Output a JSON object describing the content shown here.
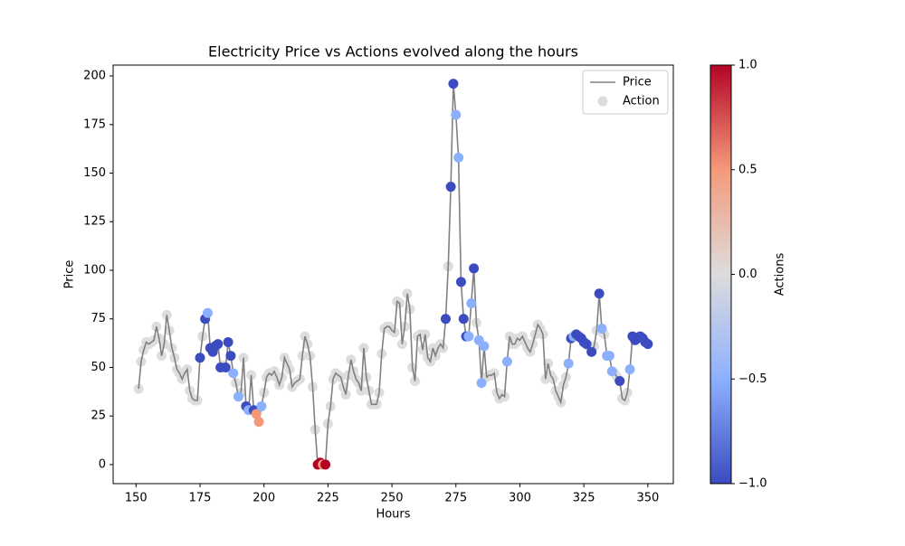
{
  "chart_data": {
    "type": "line",
    "title": "Electricity Price vs Actions evolved along the hours",
    "xlabel": "Hours",
    "ylabel": "Price",
    "x": [
      151,
      152,
      153,
      154,
      155,
      156,
      157,
      158,
      159,
      160,
      161,
      162,
      163,
      164,
      165,
      166,
      167,
      168,
      169,
      170,
      171,
      172,
      173,
      174,
      175,
      176,
      177,
      178,
      179,
      180,
      181,
      182,
      183,
      184,
      185,
      186,
      187,
      188,
      189,
      190,
      191,
      192,
      193,
      194,
      195,
      196,
      197,
      198,
      199,
      200,
      201,
      202,
      203,
      204,
      205,
      206,
      207,
      208,
      209,
      210,
      211,
      212,
      213,
      214,
      215,
      216,
      217,
      218,
      219,
      220,
      221,
      222,
      223,
      224,
      225,
      226,
      227,
      228,
      229,
      230,
      231,
      232,
      233,
      234,
      235,
      236,
      237,
      238,
      239,
      240,
      241,
      242,
      243,
      244,
      245,
      246,
      247,
      248,
      249,
      250,
      251,
      252,
      253,
      254,
      255,
      256,
      257,
      258,
      259,
      260,
      261,
      262,
      263,
      264,
      265,
      266,
      267,
      268,
      269,
      270,
      271,
      272,
      273,
      274,
      275,
      276,
      277,
      278,
      279,
      280,
      281,
      282,
      283,
      284,
      285,
      286,
      287,
      288,
      289,
      290,
      291,
      292,
      293,
      294,
      295,
      296,
      297,
      298,
      299,
      300,
      301,
      302,
      303,
      304,
      305,
      306,
      307,
      308,
      309,
      310,
      311,
      312,
      313,
      314,
      315,
      316,
      317,
      318,
      319,
      320,
      321,
      322,
      323,
      324,
      325,
      326,
      327,
      328,
      329,
      330,
      331,
      332,
      333,
      334,
      335,
      336,
      337,
      338,
      339,
      340,
      341,
      342,
      343,
      344,
      345,
      346,
      347,
      348,
      349,
      350
    ],
    "series": [
      {
        "name": "Price",
        "color": "#808080",
        "values": [
          39,
          53,
          59,
          63,
          62,
          63,
          64,
          71,
          65,
          56,
          62,
          77,
          69,
          60,
          55,
          49,
          47,
          44,
          47,
          49,
          38,
          34,
          33,
          33,
          55,
          66,
          75,
          78,
          60,
          58,
          61,
          62,
          50,
          51,
          50,
          63,
          56,
          47,
          42,
          35,
          37,
          55,
          30,
          28,
          46,
          28,
          26,
          22,
          30,
          37,
          45,
          47,
          46,
          48,
          45,
          41,
          45,
          55,
          52,
          49,
          40,
          42,
          43,
          44,
          56,
          66,
          62,
          56,
          40,
          18,
          0,
          1,
          0,
          0,
          21,
          30,
          44,
          47,
          46,
          45,
          40,
          36,
          46,
          54,
          48,
          44,
          42,
          38,
          60,
          45,
          38,
          31,
          31,
          31,
          37,
          57,
          70,
          71,
          71,
          69,
          68,
          84,
          83,
          62,
          71,
          88,
          80,
          50,
          43,
          66,
          67,
          59,
          67,
          55,
          53,
          60,
          56,
          60,
          62,
          60,
          75,
          102,
          143,
          196,
          180,
          158,
          94,
          75,
          66,
          66,
          83,
          101,
          73,
          64,
          42,
          61,
          45,
          46,
          46,
          47,
          37,
          34,
          36,
          35,
          53,
          66,
          62,
          62,
          65,
          64,
          66,
          63,
          60,
          58,
          62,
          67,
          72,
          70,
          67,
          44,
          52,
          46,
          44,
          38,
          35,
          32,
          41,
          45,
          52,
          65,
          66,
          67,
          66,
          65,
          63,
          62,
          61,
          58,
          61,
          69,
          88,
          70,
          67,
          56,
          56,
          48,
          47,
          45,
          43,
          34,
          33,
          37,
          49,
          66,
          64,
          65,
          66,
          65,
          63,
          62
        ]
      },
      {
        "name": "Action",
        "type": "scatter",
        "color": "#dddddd",
        "values": [
          0,
          0,
          0,
          0,
          0,
          0,
          0,
          0,
          0,
          0,
          0,
          0,
          0,
          0,
          0,
          0,
          0,
          0,
          0,
          0,
          0,
          0,
          0,
          0,
          -1,
          0,
          -1,
          -0.5,
          -1,
          -1,
          -1,
          -1,
          -1,
          0,
          -1,
          -1,
          -1,
          -0.5,
          0,
          -0.5,
          0,
          0,
          -1,
          -0.5,
          0,
          -1,
          0.5,
          0.5,
          -0.5,
          0,
          0,
          0,
          0,
          0,
          0,
          0,
          0,
          0,
          0,
          0,
          0,
          0,
          0,
          0,
          0,
          0,
          0,
          0,
          0,
          0,
          1,
          1,
          0.5,
          1,
          0,
          0,
          0,
          0,
          0,
          0,
          0,
          0,
          0,
          0,
          0,
          0,
          0,
          0,
          0,
          0,
          0,
          0,
          0,
          0,
          0,
          0,
          0,
          0,
          0,
          0,
          0,
          0,
          0,
          0,
          0,
          0,
          0,
          0,
          0,
          0,
          0,
          0,
          0,
          0,
          0,
          0,
          0,
          0,
          0,
          0,
          -1,
          0,
          -1,
          -1,
          -0.5,
          -0.5,
          -1,
          -1,
          -1,
          -0.5,
          -0.5,
          -1,
          0,
          -0.5,
          -0.5,
          -0.5,
          0,
          0,
          0,
          0,
          0,
          0,
          0,
          0,
          -0.5,
          0,
          0,
          0,
          0,
          0,
          0,
          0,
          0,
          0,
          0,
          0,
          0,
          0,
          0,
          0,
          0,
          0,
          0,
          0,
          0,
          0,
          0,
          0,
          -0.5,
          -1,
          -0.5,
          -1,
          -1,
          -1,
          -1,
          -1,
          0,
          -1,
          0,
          0,
          -1,
          -0.5,
          0,
          -0.5,
          -0.5,
          -0.5,
          0,
          0,
          -1,
          0,
          0,
          0,
          -0.5,
          -1,
          -1,
          -1,
          -1,
          -1,
          -1,
          -1
        ]
      }
    ],
    "xlim": [
      141.05,
      359.95
    ],
    "xticks": [
      150,
      175,
      200,
      225,
      250,
      275,
      300,
      325,
      350
    ],
    "ylim": [
      -9.8,
      205.6
    ],
    "yticks": [
      0,
      25,
      50,
      75,
      100,
      125,
      150,
      175,
      200
    ],
    "legend": "upper right",
    "colorbar": {
      "label": "Actions",
      "colormap": "coolwarm",
      "lim": [
        -1,
        1
      ],
      "ticks": [
        {
          "value": -1,
          "label": "−1.0"
        },
        {
          "value": -0.5,
          "label": "−0.5"
        },
        {
          "value": 0,
          "label": "0.0"
        },
        0.5,
        {
          "value": 1,
          "label": "1.0"
        }
      ]
    }
  }
}
